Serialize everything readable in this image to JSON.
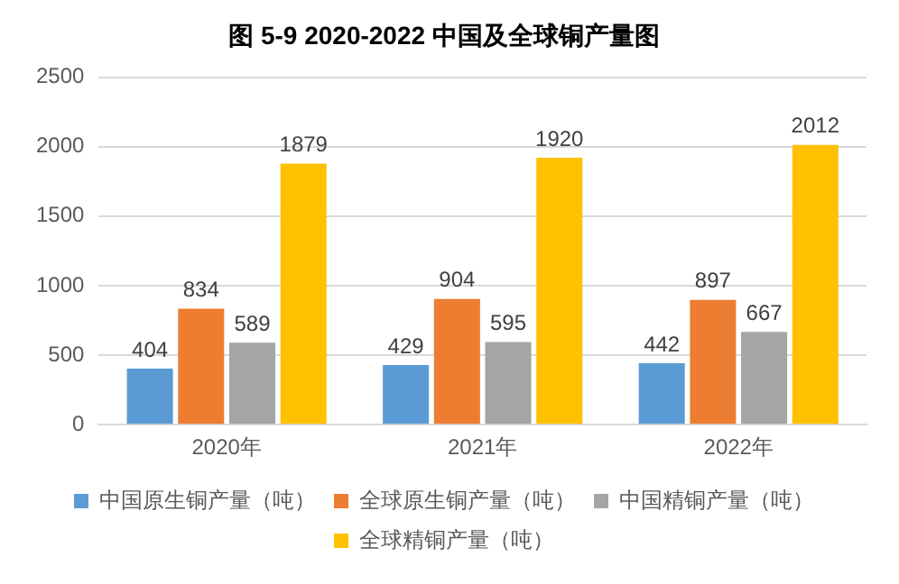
{
  "chart_data": {
    "type": "bar",
    "title": "图 5-9 2020-2022 中国及全球铜产量图",
    "categories": [
      "2020年",
      "2021年",
      "2022年"
    ],
    "series": [
      {
        "name": "中国原生铜产量（吨）",
        "color": "#5b9bd5",
        "values": [
          404,
          429,
          442
        ]
      },
      {
        "name": "全球原生铜产量（吨）",
        "color": "#ed7d31",
        "values": [
          834,
          904,
          897
        ]
      },
      {
        "name": "中国精铜产量（吨）",
        "color": "#a5a5a5",
        "values": [
          589,
          595,
          667
        ]
      },
      {
        "name": "全球精铜产量（吨）",
        "color": "#ffc000",
        "values": [
          1879,
          1920,
          2012
        ]
      }
    ],
    "ylim": [
      0,
      2500
    ],
    "yticks": [
      0,
      500,
      1000,
      1500,
      2000,
      2500
    ],
    "grid": "y",
    "legend": "bottom",
    "data_labels": true
  }
}
